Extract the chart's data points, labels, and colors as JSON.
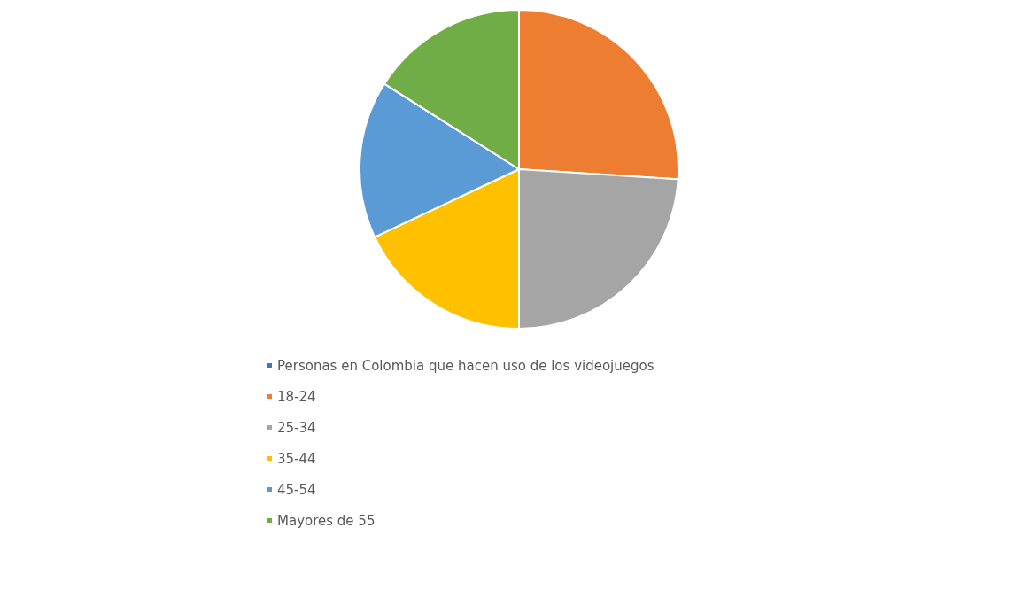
{
  "chart_data": {
    "type": "pie",
    "categories": [
      "Personas en Colombia que hacen uso de los videojuegos",
      "18-24",
      "25-34",
      "35-44",
      "45-54",
      "Mayores de 55"
    ],
    "values": [
      0,
      26,
      24,
      18,
      16,
      16
    ],
    "colors": [
      "#4472c4",
      "#ed7d31",
      "#a5a5a5",
      "#ffc000",
      "#5b9bd5",
      "#70ad47"
    ],
    "legend": "bottom"
  }
}
